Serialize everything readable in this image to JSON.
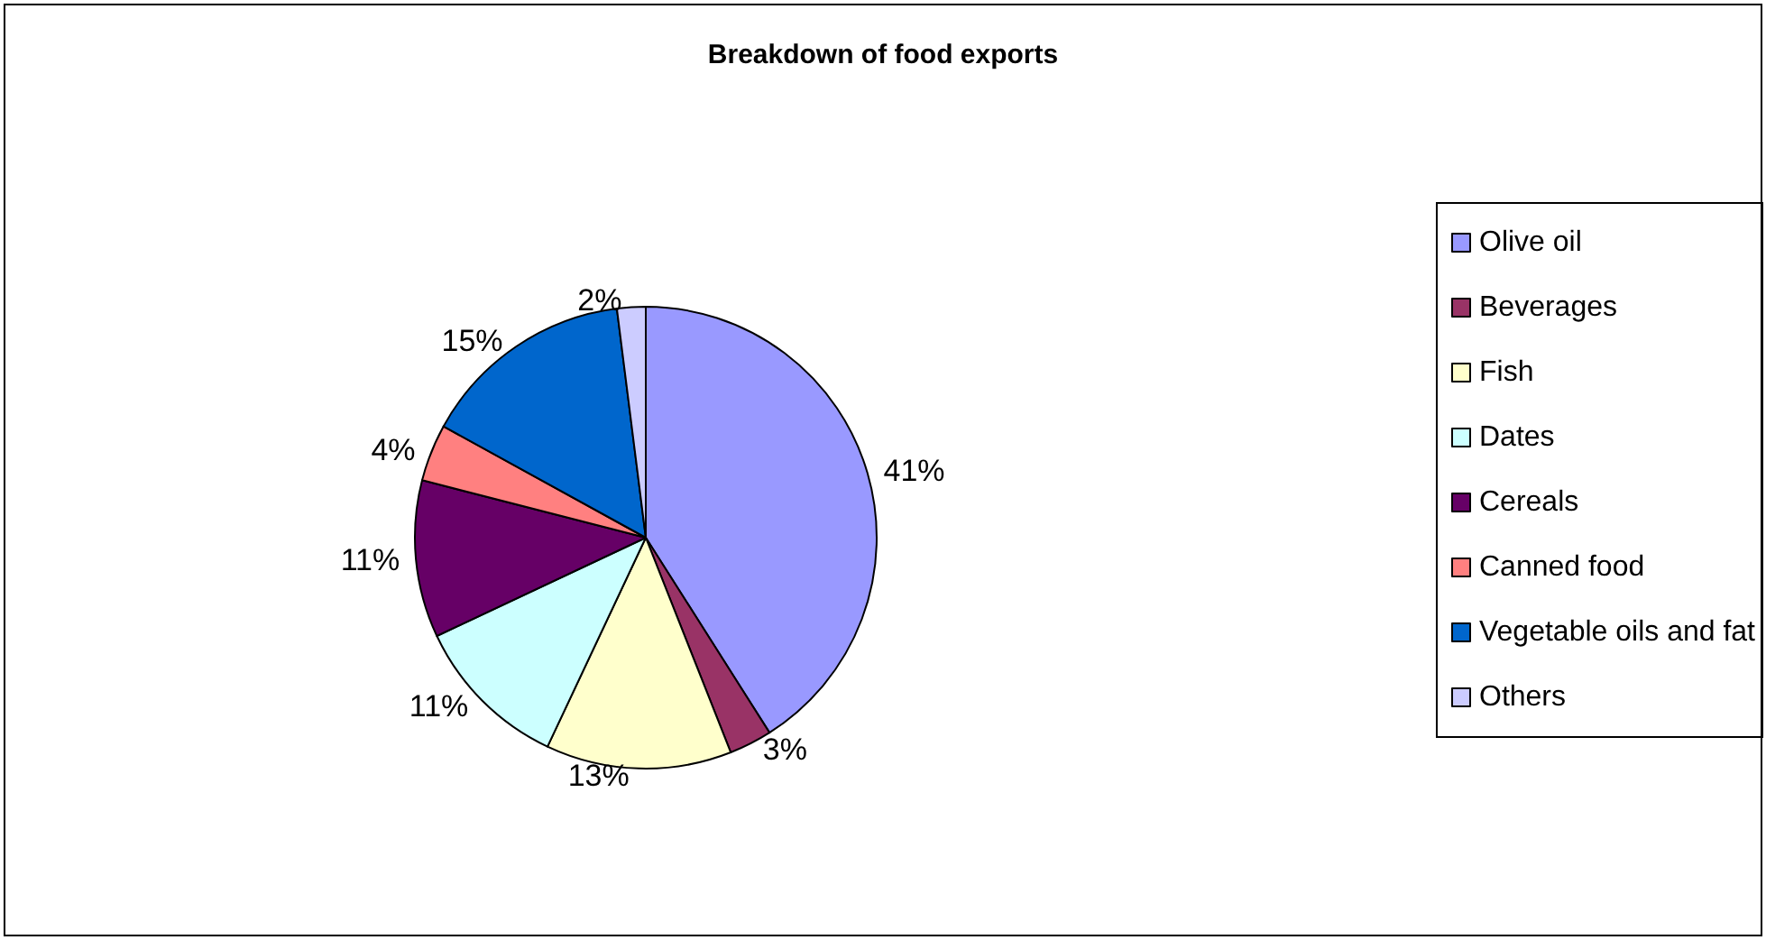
{
  "chart_data": {
    "type": "pie",
    "title": "Breakdown of food exports",
    "categories": [
      "Olive oil",
      "Beverages",
      "Fish",
      "Dates",
      "Cereals",
      "Canned food",
      "Vegetable oils and fat",
      "Others"
    ],
    "values": [
      41,
      3,
      13,
      11,
      11,
      4,
      15,
      2
    ],
    "value_labels": [
      "41%",
      "3%",
      "13%",
      "11%",
      "11%",
      "4%",
      "15%",
      "2%"
    ],
    "colors": [
      "#9999ff",
      "#993366",
      "#ffffcc",
      "#ccffff",
      "#660066",
      "#ff8080",
      "#0066cc",
      "#ccccff"
    ],
    "legend": "right"
  }
}
